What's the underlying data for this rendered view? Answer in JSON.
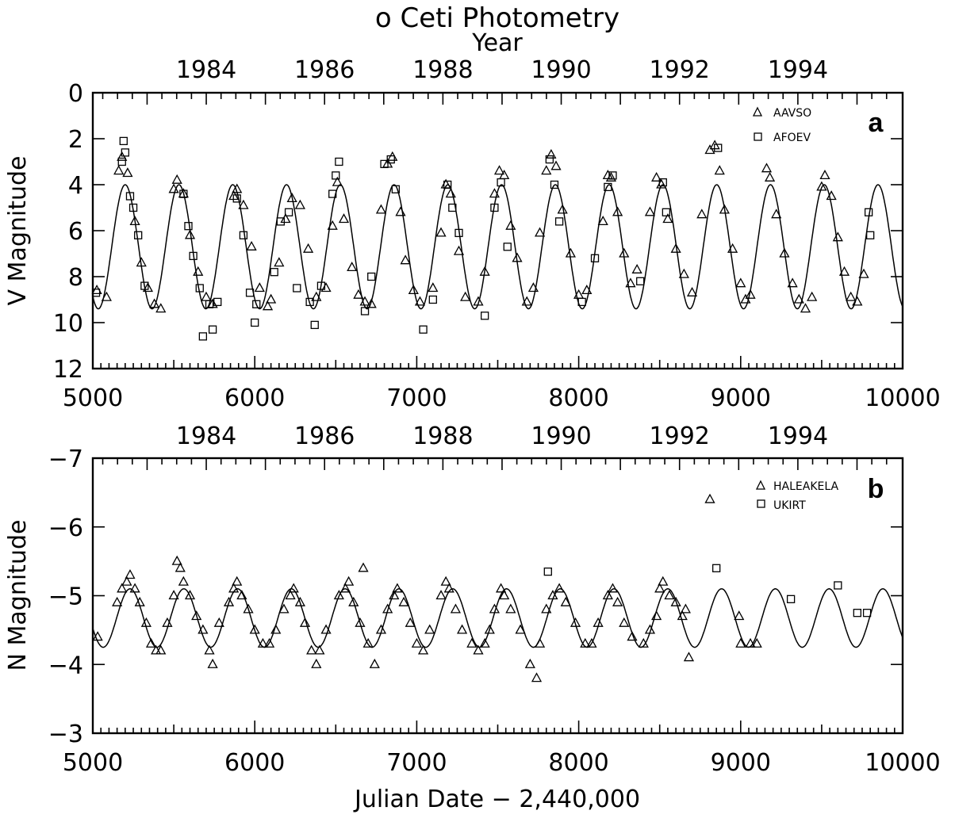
{
  "title": "o Ceti Photometry",
  "top_axis_label": "Year",
  "chart_data": [
    {
      "panel": "a",
      "type": "scatter",
      "ylabel": "V Magnitude",
      "xlabel": "",
      "xlim": [
        5000,
        10000
      ],
      "ylim": [
        12,
        0
      ],
      "y_inverted": true,
      "x_ticks": [
        "5000",
        "6000",
        "7000",
        "8000",
        "9000",
        "10000"
      ],
      "y_ticks": [
        "0",
        "2",
        "4",
        "6",
        "8",
        "10",
        "12"
      ],
      "top_year_ticks": [
        "1984",
        "1986",
        "1988",
        "1990",
        "1992",
        "1994"
      ],
      "legend": {
        "placement": "top-right",
        "entries": [
          {
            "name": "AAVSO",
            "marker": "triangle"
          },
          {
            "name": "AFOEV",
            "marker": "square"
          }
        ]
      },
      "model_curve": {
        "type": "sinusoid",
        "period_days": 332,
        "maximum_jd": 5200,
        "max_mag": 4.0,
        "min_mag": 9.4
      },
      "series": [
        {
          "name": "AAVSO",
          "marker": "triangle",
          "x": [
            5025,
            5085,
            5160,
            5180,
            5215,
            5260,
            5300,
            5340,
            5380,
            5420,
            5500,
            5520,
            5560,
            5600,
            5650,
            5700,
            5740,
            5870,
            5890,
            5930,
            5980,
            6030,
            6080,
            6100,
            6150,
            6190,
            6230,
            6280,
            6330,
            6380,
            6440,
            6480,
            6510,
            6550,
            6600,
            6640,
            6680,
            6720,
            6780,
            6820,
            6850,
            6900,
            6930,
            6980,
            7020,
            7100,
            7150,
            7180,
            7210,
            7260,
            7300,
            7380,
            7420,
            7480,
            7510,
            7540,
            7580,
            7620,
            7680,
            7720,
            7760,
            7800,
            7830,
            7860,
            7900,
            7950,
            8000,
            8050,
            8150,
            8180,
            8200,
            8240,
            8280,
            8320,
            8360,
            8440,
            8480,
            8510,
            8550,
            8600,
            8650,
            8700,
            8760,
            8810,
            8840,
            8870,
            8900,
            8950,
            9000,
            9030,
            9060,
            9160,
            9180,
            9220,
            9270,
            9320,
            9360,
            9400,
            9440,
            9500,
            9520,
            9560,
            9600,
            9640,
            9680,
            9720,
            9760
          ],
          "y": [
            8.6,
            8.9,
            3.4,
            2.8,
            3.5,
            5.6,
            7.4,
            8.5,
            9.2,
            9.4,
            4.2,
            3.8,
            4.4,
            6.2,
            7.8,
            8.9,
            9.2,
            4.5,
            4.2,
            4.9,
            6.7,
            8.5,
            9.3,
            9.0,
            7.4,
            5.5,
            4.6,
            4.9,
            6.8,
            8.9,
            8.5,
            5.8,
            3.9,
            5.5,
            7.6,
            8.8,
            9.1,
            9.2,
            5.1,
            3.1,
            2.8,
            5.2,
            7.3,
            8.6,
            9.1,
            8.5,
            6.1,
            4.0,
            4.4,
            6.9,
            8.9,
            9.1,
            7.8,
            4.4,
            3.4,
            3.6,
            5.8,
            7.2,
            9.1,
            8.5,
            6.1,
            3.4,
            2.7,
            3.2,
            5.1,
            7.0,
            8.8,
            8.6,
            5.6,
            3.6,
            3.7,
            5.2,
            7.0,
            8.3,
            7.7,
            5.2,
            3.7,
            4.0,
            5.5,
            6.8,
            7.9,
            8.7,
            5.3,
            2.5,
            2.3,
            3.4,
            5.1,
            6.8,
            8.3,
            9.0,
            8.8,
            3.3,
            3.7,
            5.3,
            7.0,
            8.3,
            9.0,
            9.4,
            8.9,
            4.1,
            3.6,
            4.5,
            6.3,
            7.8,
            8.9,
            9.1,
            7.9
          ]
        },
        {
          "name": "AFOEV",
          "marker": "square",
          "x": [
            5020,
            5180,
            5190,
            5200,
            5230,
            5250,
            5280,
            5320,
            5560,
            5590,
            5620,
            5660,
            5680,
            5720,
            5740,
            5770,
            5890,
            5930,
            5970,
            6000,
            6010,
            6120,
            6160,
            6210,
            6260,
            6340,
            6370,
            6410,
            6480,
            6500,
            6520,
            6680,
            6720,
            6800,
            6840,
            6870,
            7040,
            7100,
            7190,
            7220,
            7260,
            7420,
            7480,
            7520,
            7560,
            7820,
            7850,
            7880,
            8020,
            8100,
            8180,
            8210,
            8380,
            8520,
            8540,
            8860,
            9790,
            9800
          ],
          "y": [
            8.7,
            3.0,
            2.1,
            2.6,
            4.5,
            5.0,
            6.2,
            8.4,
            4.4,
            5.8,
            7.1,
            8.5,
            10.6,
            9.2,
            10.3,
            9.1,
            4.6,
            6.2,
            8.7,
            10.0,
            9.2,
            7.8,
            5.6,
            5.2,
            8.5,
            9.1,
            10.1,
            8.4,
            4.4,
            3.6,
            3.0,
            9.5,
            8.0,
            3.1,
            2.9,
            4.2,
            10.3,
            9.0,
            4.0,
            5.0,
            6.1,
            9.7,
            5.0,
            3.9,
            6.7,
            2.9,
            4.0,
            5.6,
            9.1,
            7.2,
            4.1,
            3.6,
            8.2,
            3.9,
            5.2,
            2.4,
            5.2,
            6.2
          ]
        }
      ]
    },
    {
      "panel": "b",
      "type": "scatter",
      "ylabel": "N Magnitude",
      "xlabel": "Julian Date − 2,440,000",
      "xlim": [
        5000,
        10000
      ],
      "ylim": [
        -3,
        -7
      ],
      "y_inverted": true,
      "x_ticks": [
        "5000",
        "6000",
        "7000",
        "8000",
        "9000",
        "10000"
      ],
      "y_ticks": [
        "−7",
        "−6",
        "−5",
        "−4",
        "−3"
      ],
      "top_year_ticks": [
        "1984",
        "1986",
        "1988",
        "1990",
        "1992",
        "1994"
      ],
      "legend": {
        "placement": "top-right",
        "entries": [
          {
            "name": "HALEAKELA",
            "marker": "triangle"
          },
          {
            "name": "UKIRT",
            "marker": "square"
          }
        ]
      },
      "model_curve": {
        "type": "sinusoid",
        "period_days": 332,
        "maximum_jd": 5230,
        "max_mag": -5.1,
        "min_mag": -4.25
      },
      "series": [
        {
          "name": "HALEAKELA",
          "marker": "triangle",
          "x": [
            5030,
            5150,
            5180,
            5210,
            5230,
            5260,
            5290,
            5330,
            5360,
            5390,
            5420,
            5460,
            5500,
            5520,
            5540,
            5560,
            5600,
            5640,
            5680,
            5720,
            5740,
            5780,
            5840,
            5870,
            5890,
            5920,
            5960,
            6000,
            6050,
            6090,
            6130,
            6180,
            6220,
            6240,
            6280,
            6310,
            6350,
            6380,
            6400,
            6440,
            6520,
            6560,
            6580,
            6610,
            6650,
            6670,
            6700,
            6740,
            6780,
            6820,
            6860,
            6880,
            6920,
            6960,
            7000,
            7040,
            7080,
            7150,
            7180,
            7200,
            7240,
            7280,
            7340,
            7380,
            7420,
            7450,
            7480,
            7520,
            7540,
            7580,
            7640,
            7700,
            7740,
            7760,
            7800,
            7840,
            7880,
            7920,
            7980,
            8040,
            8080,
            8120,
            8180,
            8210,
            8240,
            8280,
            8330,
            8400,
            8440,
            8480,
            8500,
            8520,
            8560,
            8600,
            8640,
            8660,
            8680,
            8810,
            8990,
            9000,
            9060,
            9100
          ],
          "y": [
            -4.4,
            -4.9,
            -5.1,
            -5.2,
            -5.3,
            -5.1,
            -4.9,
            -4.6,
            -4.3,
            -4.2,
            -4.2,
            -4.6,
            -5.0,
            -5.5,
            -5.4,
            -5.2,
            -5.0,
            -4.7,
            -4.5,
            -4.2,
            -4.0,
            -4.6,
            -4.9,
            -5.1,
            -5.2,
            -5.0,
            -4.8,
            -4.5,
            -4.3,
            -4.3,
            -4.5,
            -4.8,
            -5.0,
            -5.1,
            -4.9,
            -4.6,
            -4.2,
            -4.0,
            -4.2,
            -4.5,
            -5.0,
            -5.1,
            -5.2,
            -4.9,
            -4.6,
            -5.4,
            -4.3,
            -4.0,
            -4.5,
            -4.8,
            -5.0,
            -5.1,
            -4.9,
            -4.6,
            -4.3,
            -4.2,
            -4.5,
            -5.0,
            -5.2,
            -5.1,
            -4.8,
            -4.5,
            -4.3,
            -4.2,
            -4.3,
            -4.5,
            -4.8,
            -5.1,
            -5.0,
            -4.8,
            -4.5,
            -4.0,
            -3.8,
            -4.3,
            -4.8,
            -5.0,
            -5.1,
            -4.9,
            -4.6,
            -4.3,
            -4.3,
            -4.6,
            -5.0,
            -5.1,
            -4.9,
            -4.6,
            -4.4,
            -4.3,
            -4.5,
            -4.7,
            -5.1,
            -5.2,
            -5.0,
            -4.9,
            -4.7,
            -4.8,
            -4.1,
            -6.4,
            -4.7,
            -4.3,
            -4.3,
            -4.3
          ]
        },
        {
          "name": "UKIRT",
          "marker": "square",
          "x": [
            7810,
            8850,
            9310,
            9600,
            9720,
            9780
          ],
          "y": [
            -5.35,
            -5.4,
            -4.95,
            -5.15,
            -4.75,
            -4.75
          ]
        }
      ]
    }
  ]
}
